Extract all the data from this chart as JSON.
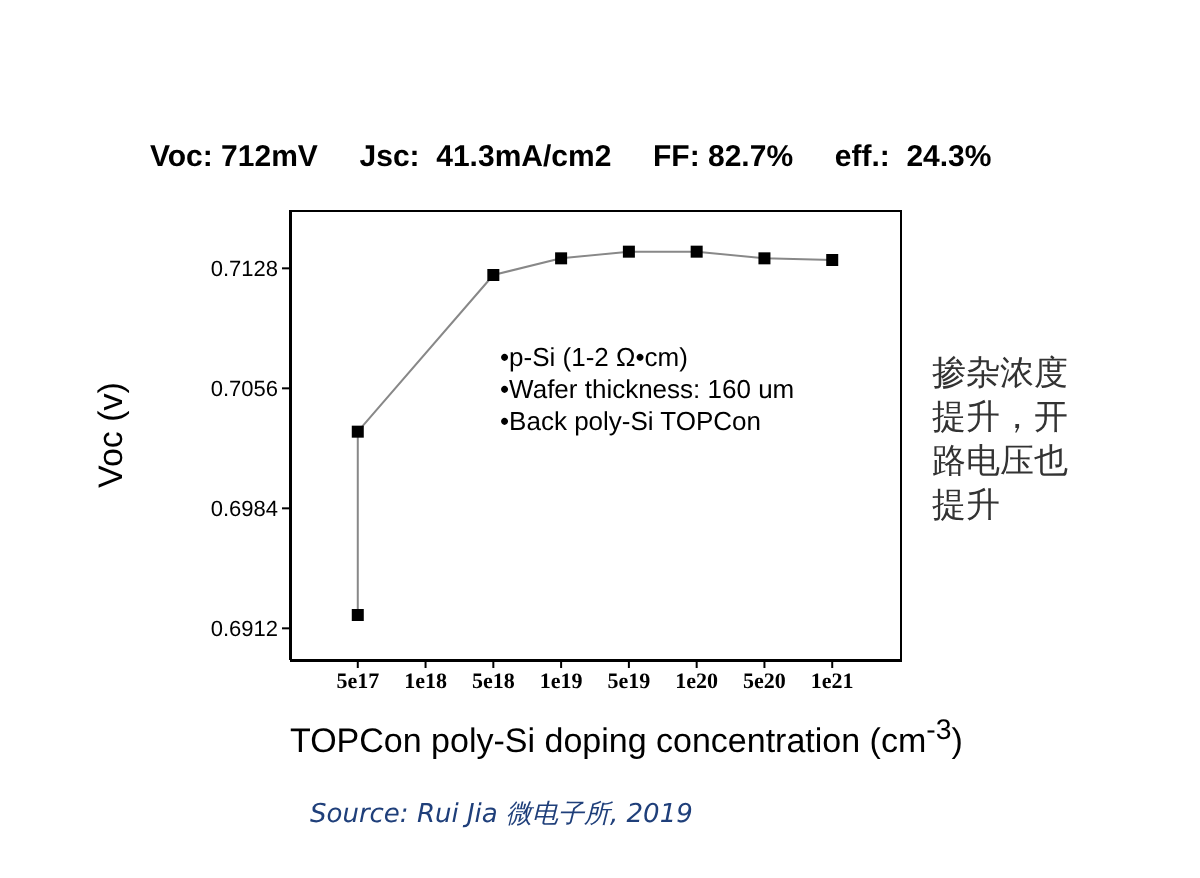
{
  "chart_data": {
    "type": "line",
    "title": "Voc: 712mV     Jsc:  41.3mA/cm2     FF: 82.7%     eff.:  24.3%",
    "xlabel": "TOPCon poly-Si doping concentration (cm$^{-3}$)",
    "ylabel": "Voc (v)",
    "categories": [
      "5e17",
      "1e18",
      "5e18",
      "1e19",
      "5e19",
      "1e20",
      "5e20",
      "1e21"
    ],
    "series": [
      {
        "color": "#000000",
        "x": [
          "5e17",
          "5e17",
          "5e18",
          "1e19",
          "5e19",
          "1e20",
          "5e20",
          "1e21"
        ],
        "values": [
          0.692,
          0.703,
          0.7124,
          0.7134,
          0.7138,
          0.7138,
          0.7134,
          0.7133
        ]
      }
    ],
    "ylim": [
      0.6893,
      0.7163
    ],
    "yticks": [
      0.6912,
      0.6984,
      0.7056,
      0.7128
    ],
    "marker": "square",
    "line_style": "solid",
    "grid": false,
    "legend": false,
    "annotations": [
      "•p-Si (1-2 Ω•cm)\n•Wafer thickness: 160 um\n•Back poly-Si TOPCon",
      "掺杂浓度提升，开路电压也提升",
      "Source: Rui Jia 微电子所, 2019"
    ]
  }
}
